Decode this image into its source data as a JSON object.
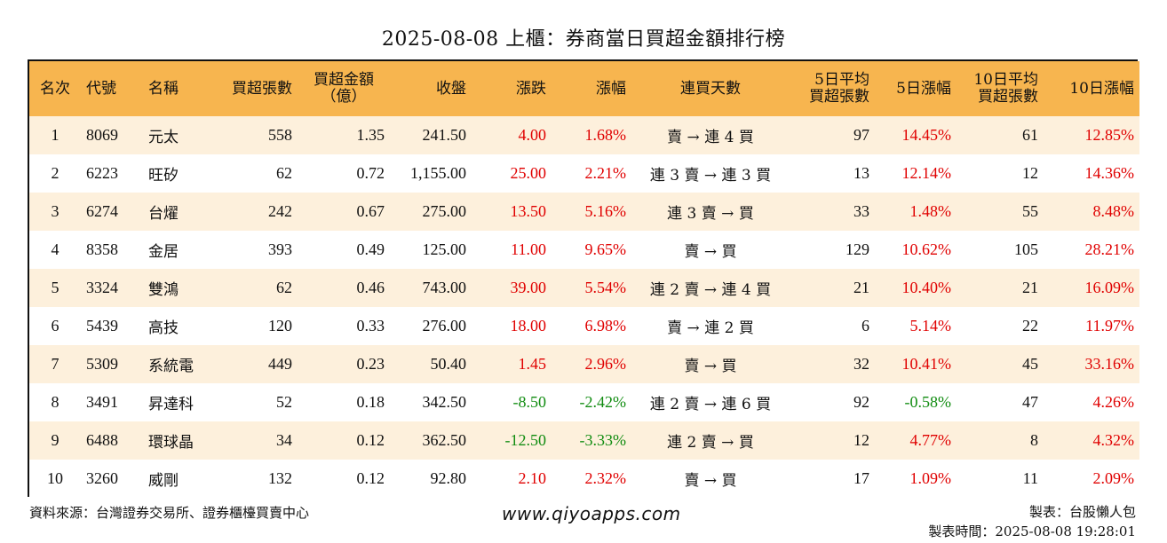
{
  "title": "2025-08-08 上櫃：券商當日買超金額排行榜",
  "colors": {
    "header_bg": "#f7b54f",
    "row_alt_bg": "#fdf0dc",
    "positive": "#e00000",
    "negative": "#118c11"
  },
  "headers": {
    "rank": "名次",
    "code": "代號",
    "name": "名稱",
    "buy_lots": "買超張數",
    "buy_amount_line1": "買超金額",
    "buy_amount_line2": "（億）",
    "close": "收盤",
    "change": "漲跌",
    "change_pct": "漲幅",
    "streak": "連買天數",
    "avg5_line1": "5日平均",
    "avg5_line2": "買超張數",
    "pct5": "5日漲幅",
    "avg10_line1": "10日平均",
    "avg10_line2": "買超張數",
    "pct10": "10日漲幅"
  },
  "rows": [
    {
      "rank": "1",
      "code": "8069",
      "name": "元太",
      "buy_lots": "558",
      "buy_amount": "1.35",
      "close": "241.50",
      "change": "4.00",
      "change_pct": "1.68%",
      "streak": "賣 → 連 4 買",
      "avg5": "97",
      "pct5": "14.45%",
      "avg10": "61",
      "pct10": "12.85%"
    },
    {
      "rank": "2",
      "code": "6223",
      "name": "旺矽",
      "buy_lots": "62",
      "buy_amount": "0.72",
      "close": "1,155.00",
      "change": "25.00",
      "change_pct": "2.21%",
      "streak": "連 3 賣 → 連 3 買",
      "avg5": "13",
      "pct5": "12.14%",
      "avg10": "12",
      "pct10": "14.36%"
    },
    {
      "rank": "3",
      "code": "6274",
      "name": "台燿",
      "buy_lots": "242",
      "buy_amount": "0.67",
      "close": "275.00",
      "change": "13.50",
      "change_pct": "5.16%",
      "streak": "連 3 賣 → 買",
      "avg5": "33",
      "pct5": "1.48%",
      "avg10": "55",
      "pct10": "8.48%"
    },
    {
      "rank": "4",
      "code": "8358",
      "name": "金居",
      "buy_lots": "393",
      "buy_amount": "0.49",
      "close": "125.00",
      "change": "11.00",
      "change_pct": "9.65%",
      "streak": "賣 → 買",
      "avg5": "129",
      "pct5": "10.62%",
      "avg10": "105",
      "pct10": "28.21%"
    },
    {
      "rank": "5",
      "code": "3324",
      "name": "雙鴻",
      "buy_lots": "62",
      "buy_amount": "0.46",
      "close": "743.00",
      "change": "39.00",
      "change_pct": "5.54%",
      "streak": "連 2 賣 → 連 4 買",
      "avg5": "21",
      "pct5": "10.40%",
      "avg10": "21",
      "pct10": "16.09%"
    },
    {
      "rank": "6",
      "code": "5439",
      "name": "高技",
      "buy_lots": "120",
      "buy_amount": "0.33",
      "close": "276.00",
      "change": "18.00",
      "change_pct": "6.98%",
      "streak": "賣 → 連 2 買",
      "avg5": "6",
      "pct5": "5.14%",
      "avg10": "22",
      "pct10": "11.97%"
    },
    {
      "rank": "7",
      "code": "5309",
      "name": "系統電",
      "buy_lots": "449",
      "buy_amount": "0.23",
      "close": "50.40",
      "change": "1.45",
      "change_pct": "2.96%",
      "streak": "賣 → 買",
      "avg5": "32",
      "pct5": "10.41%",
      "avg10": "45",
      "pct10": "33.16%"
    },
    {
      "rank": "8",
      "code": "3491",
      "name": "昇達科",
      "buy_lots": "52",
      "buy_amount": "0.18",
      "close": "342.50",
      "change": "-8.50",
      "change_pct": "-2.42%",
      "streak": "連 2 賣 → 連 6 買",
      "avg5": "92",
      "pct5": "-0.58%",
      "avg10": "47",
      "pct10": "4.26%"
    },
    {
      "rank": "9",
      "code": "6488",
      "name": "環球晶",
      "buy_lots": "34",
      "buy_amount": "0.12",
      "close": "362.50",
      "change": "-12.50",
      "change_pct": "-3.33%",
      "streak": "連 2 賣 → 買",
      "avg5": "12",
      "pct5": "4.77%",
      "avg10": "8",
      "pct10": "4.32%"
    },
    {
      "rank": "10",
      "code": "3260",
      "name": "威剛",
      "buy_lots": "132",
      "buy_amount": "0.12",
      "close": "92.80",
      "change": "2.10",
      "change_pct": "2.32%",
      "streak": "賣 → 買",
      "avg5": "17",
      "pct5": "1.09%",
      "avg10": "11",
      "pct10": "2.09%"
    }
  ],
  "footer": {
    "source": "資料來源：台灣證券交易所、證券櫃檯買賣中心",
    "website": "www.qiyoapps.com",
    "author": "製表：台股懶人包",
    "made_time": "製表時間：2025-08-08 19:28:01"
  }
}
